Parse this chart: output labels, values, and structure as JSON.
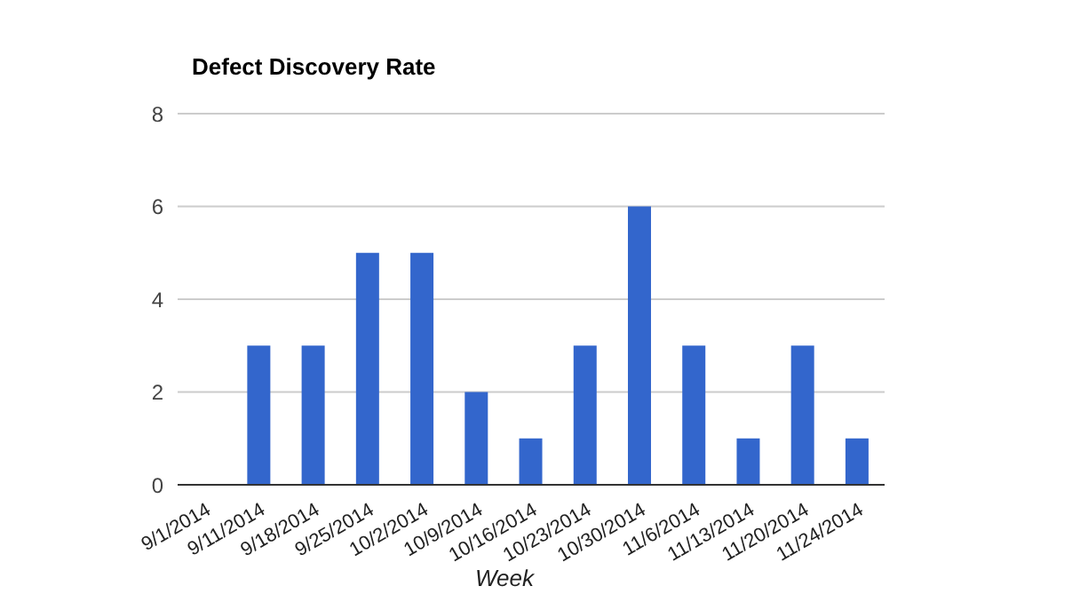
{
  "chart_data": {
    "type": "bar",
    "title": "Defect Discovery Rate",
    "xlabel": "Week",
    "categories": [
      "9/1/2014",
      "9/11/2014",
      "9/18/2014",
      "9/25/2014",
      "10/2/2014",
      "10/9/2014",
      "10/16/2014",
      "10/23/2014",
      "10/30/2014",
      "11/6/2014",
      "11/13/2014",
      "11/20/2014",
      "11/24/2014"
    ],
    "values": [
      0,
      3,
      3,
      5,
      5,
      2,
      1,
      3,
      6,
      3,
      1,
      3,
      1
    ],
    "color": "#3366cc",
    "ylim": [
      0,
      8
    ],
    "yticks": [
      0,
      2,
      4,
      6,
      8
    ],
    "grid": "y",
    "legend": false
  }
}
